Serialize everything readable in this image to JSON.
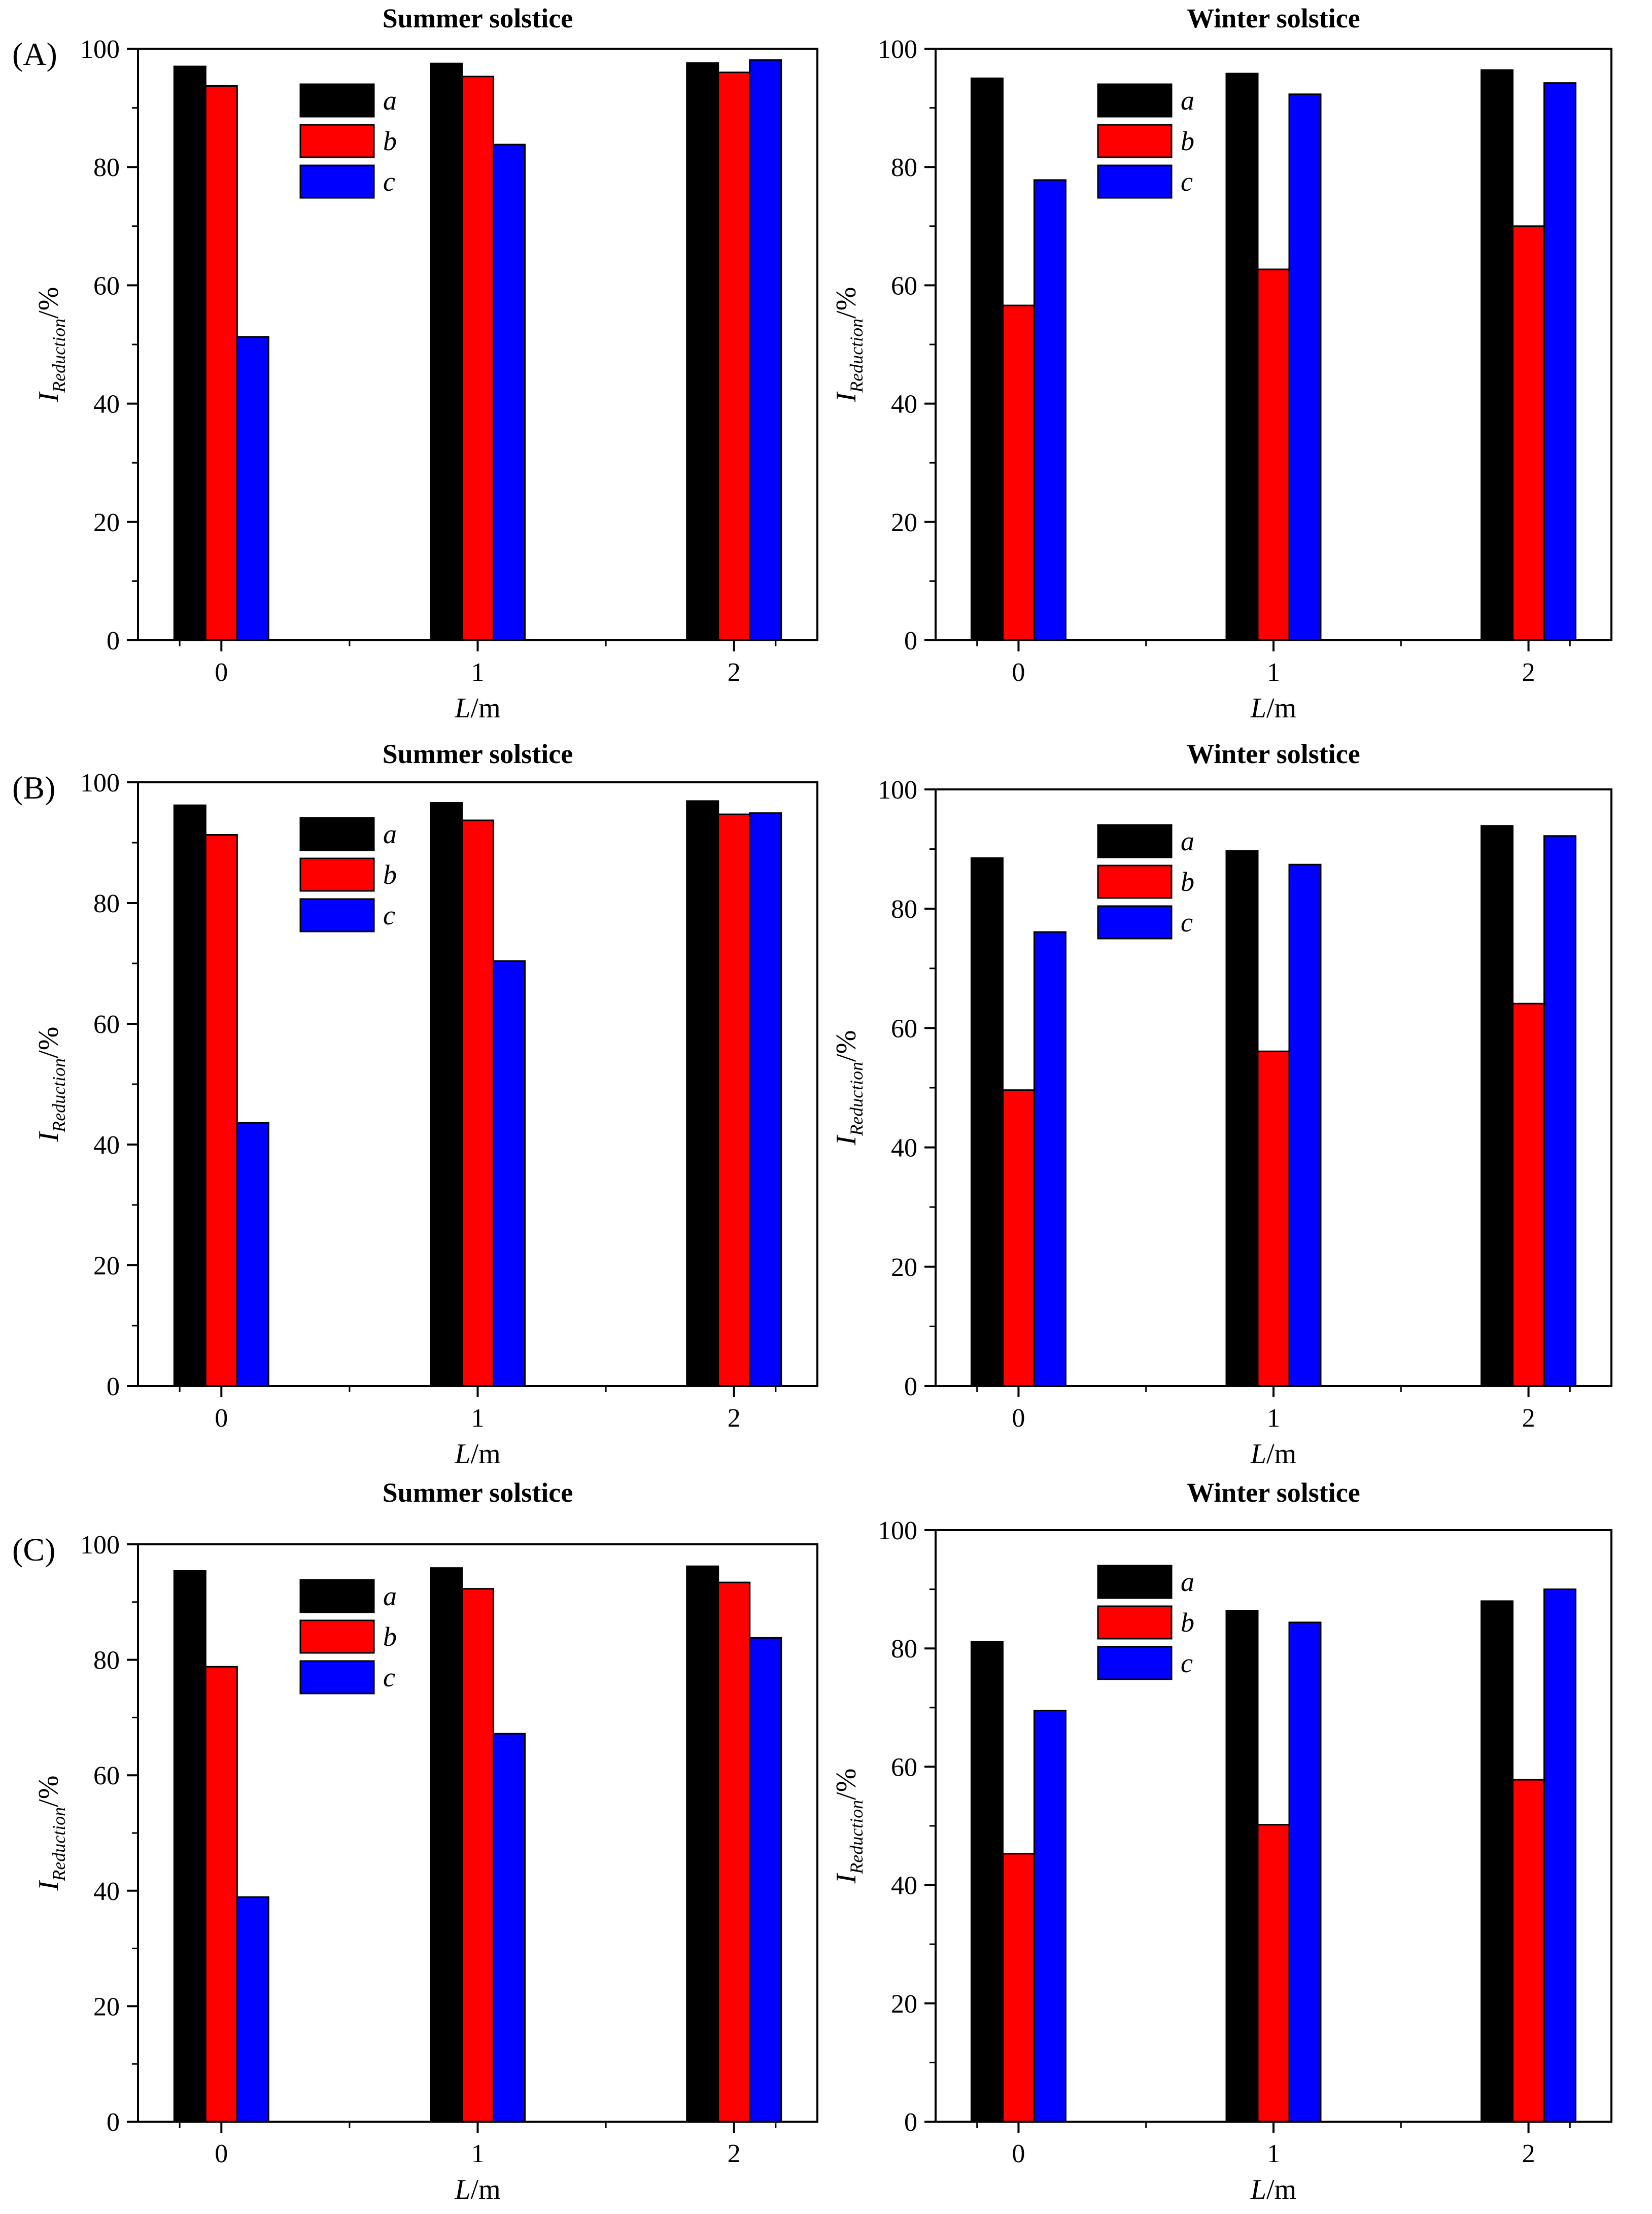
{
  "figure": {
    "panel_labels": [
      "(A)",
      "(B)",
      "(C)"
    ],
    "series_colors": {
      "a": "#000000",
      "b": "#ff0000",
      "c": "#0000ff"
    }
  },
  "chart_data": [
    {
      "type": "bar",
      "row": 0,
      "col": 0,
      "title": "Summer solstice",
      "xlabel_main": "L",
      "xlabel_unit": "/m",
      "ylabel_main": "I",
      "ylabel_sub": "Reduction",
      "ylabel_unit": "/%",
      "categories": [
        "0",
        "1",
        "2"
      ],
      "ylim": [
        0,
        100
      ],
      "yticks": [
        "0",
        "20",
        "40",
        "60",
        "80",
        "100"
      ],
      "legend": [
        "a",
        "b",
        "c"
      ],
      "series": [
        {
          "name": "a",
          "values": [
            97.0,
            97.5,
            97.6
          ]
        },
        {
          "name": "b",
          "values": [
            93.7,
            95.3,
            96.0
          ]
        },
        {
          "name": "c",
          "values": [
            51.3,
            83.8,
            98.1
          ]
        }
      ]
    },
    {
      "type": "bar",
      "row": 0,
      "col": 1,
      "title": "Winter solstice",
      "xlabel_main": "L",
      "xlabel_unit": "/m",
      "ylabel_main": "I",
      "ylabel_sub": "Reduction",
      "ylabel_unit": "/%",
      "categories": [
        "0",
        "1",
        "2"
      ],
      "ylim": [
        0,
        100
      ],
      "yticks": [
        "0",
        "20",
        "40",
        "60",
        "80",
        "100"
      ],
      "legend": [
        "a",
        "b",
        "c"
      ],
      "series": [
        {
          "name": "a",
          "values": [
            95.0,
            95.8,
            96.4
          ]
        },
        {
          "name": "b",
          "values": [
            56.6,
            62.7,
            70.0
          ]
        },
        {
          "name": "c",
          "values": [
            77.8,
            92.3,
            94.2
          ]
        }
      ]
    },
    {
      "type": "bar",
      "row": 1,
      "col": 0,
      "title": "Summer solstice",
      "xlabel_main": "L",
      "xlabel_unit": "/m",
      "ylabel_main": "I",
      "ylabel_sub": "Reduction",
      "ylabel_unit": "/%",
      "categories": [
        "0",
        "1",
        "2"
      ],
      "ylim": [
        0,
        100
      ],
      "yticks": [
        "0",
        "20",
        "40",
        "60",
        "80",
        "100"
      ],
      "legend": [
        "a",
        "b",
        "c"
      ],
      "series": [
        {
          "name": "a",
          "values": [
            96.2,
            96.6,
            96.9
          ]
        },
        {
          "name": "b",
          "values": [
            91.3,
            93.7,
            94.7
          ]
        },
        {
          "name": "c",
          "values": [
            43.6,
            70.4,
            94.9
          ]
        }
      ]
    },
    {
      "type": "bar",
      "row": 1,
      "col": 1,
      "title": "Winter solstice",
      "xlabel_main": "L",
      "xlabel_unit": "/m",
      "ylabel_main": "I",
      "ylabel_sub": "Reduction",
      "ylabel_unit": "/%",
      "categories": [
        "0",
        "1",
        "2"
      ],
      "ylim": [
        0,
        100
      ],
      "yticks": [
        "0",
        "20",
        "40",
        "60",
        "80",
        "100"
      ],
      "legend": [
        "a",
        "b",
        "c"
      ],
      "series": [
        {
          "name": "a",
          "values": [
            88.5,
            89.7,
            93.9
          ]
        },
        {
          "name": "b",
          "values": [
            49.6,
            56.1,
            64.1
          ]
        },
        {
          "name": "c",
          "values": [
            76.1,
            87.4,
            92.2
          ]
        }
      ]
    },
    {
      "type": "bar",
      "row": 2,
      "col": 0,
      "title": "Summer solstice",
      "xlabel_main": "L",
      "xlabel_unit": "/m",
      "ylabel_main": "I",
      "ylabel_sub": "Reduction",
      "ylabel_unit": "/%",
      "categories": [
        "0",
        "1",
        "2"
      ],
      "ylim": [
        0,
        100
      ],
      "yticks": [
        "0",
        "20",
        "40",
        "60",
        "80",
        "100"
      ],
      "legend": [
        "a",
        "b",
        "c"
      ],
      "series": [
        {
          "name": "a",
          "values": [
            95.4,
            95.9,
            96.2
          ]
        },
        {
          "name": "b",
          "values": [
            78.8,
            92.3,
            93.4
          ]
        },
        {
          "name": "c",
          "values": [
            38.9,
            67.2,
            83.8
          ]
        }
      ]
    },
    {
      "type": "bar",
      "row": 2,
      "col": 1,
      "title": "Winter solstice",
      "xlabel_main": "L",
      "xlabel_unit": "/m",
      "ylabel_main": "I",
      "ylabel_sub": "Reduction",
      "ylabel_unit": "/%",
      "categories": [
        "0",
        "1",
        "2"
      ],
      "ylim": [
        0,
        100
      ],
      "yticks": [
        "0",
        "20",
        "40",
        "60",
        "80",
        "100"
      ],
      "legend": [
        "a",
        "b",
        "c"
      ],
      "series": [
        {
          "name": "a",
          "values": [
            81.1,
            86.4,
            88.0
          ]
        },
        {
          "name": "b",
          "values": [
            45.3,
            50.2,
            57.8
          ]
        },
        {
          "name": "c",
          "values": [
            69.5,
            84.4,
            90.0
          ]
        }
      ]
    }
  ]
}
